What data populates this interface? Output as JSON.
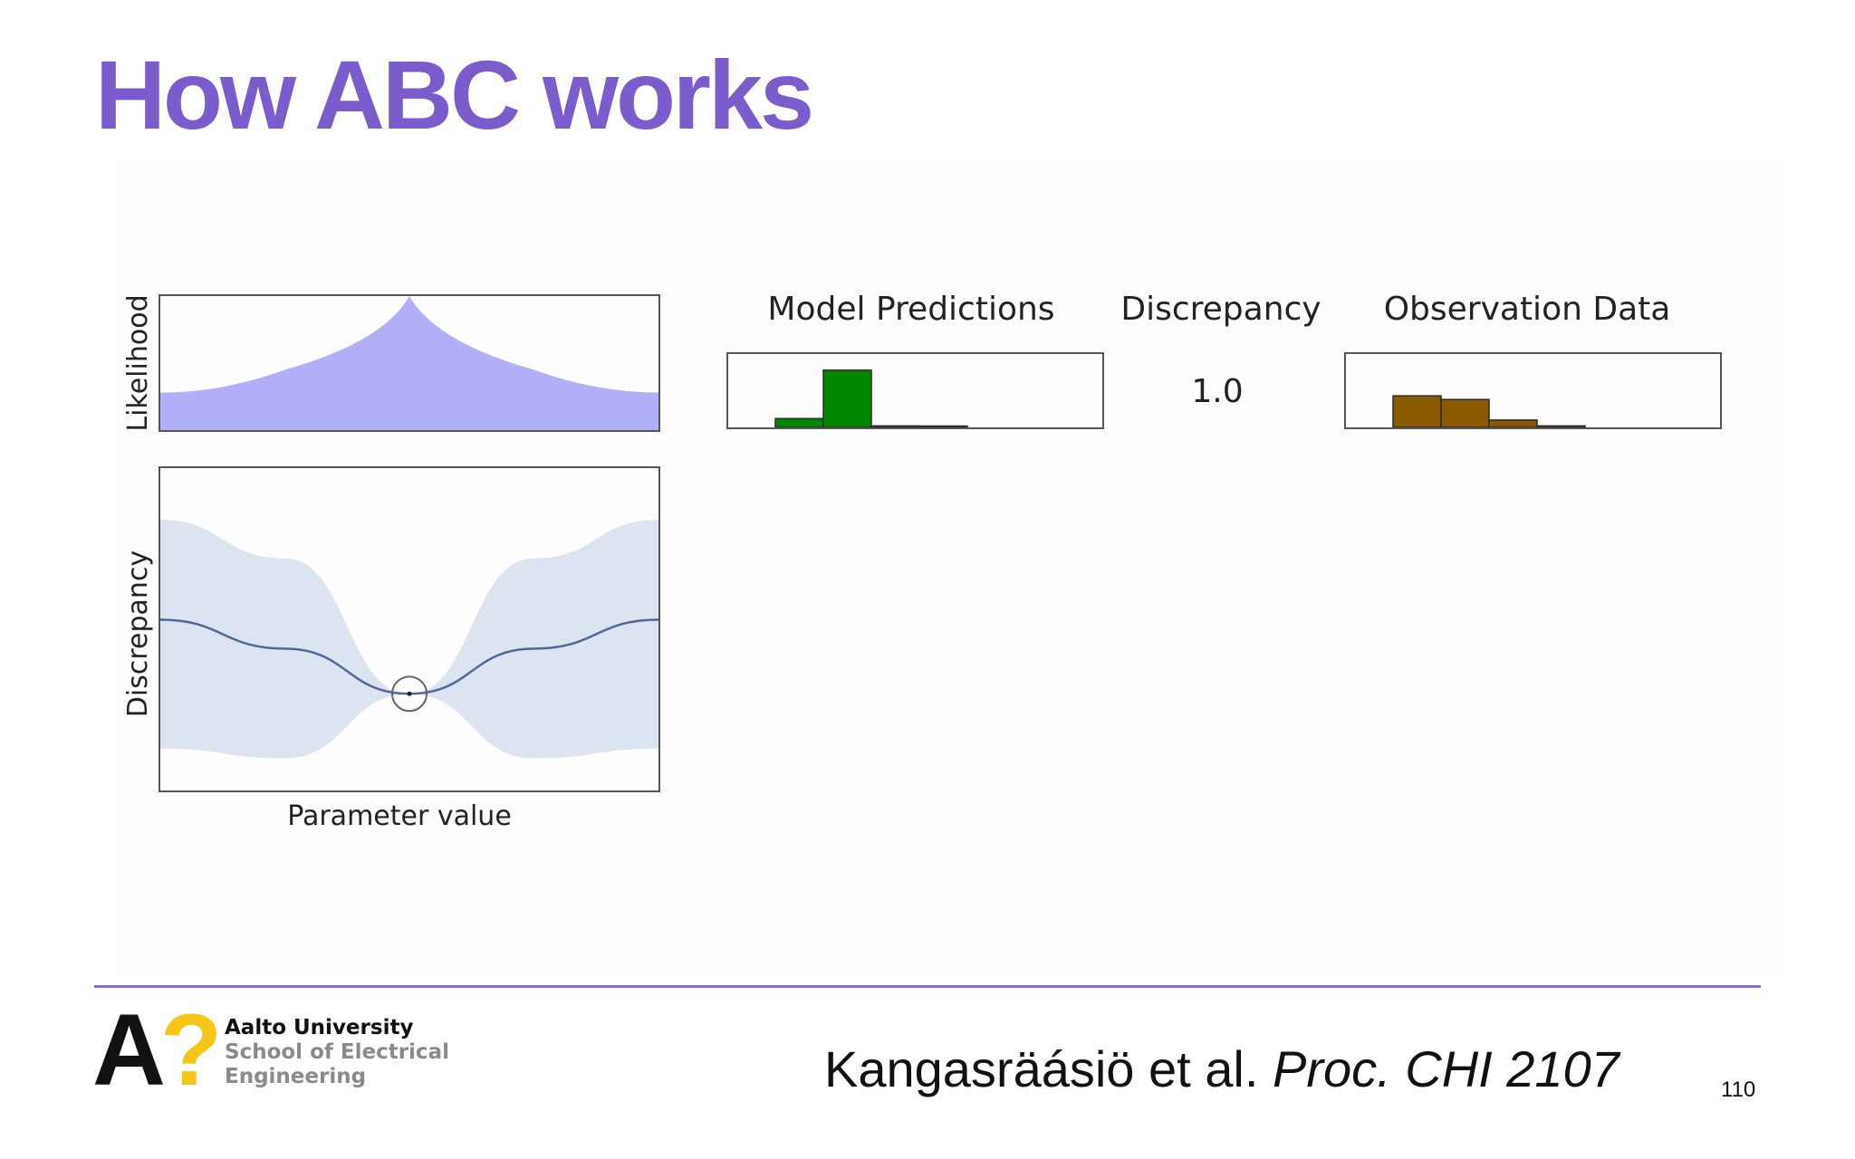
{
  "slide": {
    "title": "How ABC works",
    "citation_authors": "Kangasräásiö et al.",
    "citation_venue": "Proc. CHI 2107",
    "page_number": "110"
  },
  "figure": {
    "likelihood_ylabel": "Likelihood",
    "discrepancy_ylabel": "Discrepancy",
    "parameter_xlabel": "Parameter value",
    "model_predictions_label": "Model Predictions",
    "discrepancy_label": "Discrepancy",
    "discrepancy_value": "1.0",
    "observation_data_label": "Observation Data",
    "colors": {
      "likelihood_fill": "#b0aff7",
      "band_fill": "#dde4f1",
      "mean_line": "#4e6796",
      "prediction_bars": "#008800",
      "observation_bars": "#8a5a00"
    }
  },
  "chart_data": [
    {
      "type": "area",
      "ylabel": "Likelihood",
      "xlabel": "",
      "x": [
        0,
        0.25,
        0.5,
        0.75,
        1
      ],
      "values": [
        0.28,
        0.45,
        1.0,
        0.45,
        0.28
      ]
    },
    {
      "type": "line",
      "ylabel": "Discrepancy",
      "xlabel": "Parameter value",
      "series": [
        {
          "values": [
            0.53,
            0.44,
            0.3,
            0.44,
            0.53
          ]
        }
      ],
      "band_upper": [
        0.84,
        0.72,
        0.3,
        0.72,
        0.84
      ],
      "band_lower": [
        0.13,
        0.1,
        0.3,
        0.1,
        0.13
      ],
      "x": [
        0,
        0.25,
        0.5,
        0.75,
        1
      ],
      "evaluated_point": {
        "x": 0.5,
        "y": 0.3
      }
    },
    {
      "type": "bar",
      "title": "Model Predictions",
      "values": [
        0.12,
        0.78,
        0.02,
        0.01
      ]
    },
    {
      "type": "bar",
      "title": "Observation Data",
      "values": [
        0.43,
        0.38,
        0.1,
        0.02
      ]
    }
  ],
  "logo": {
    "mark_a": "A",
    "mark_q": "?",
    "university": "Aalto University",
    "school_line1": "School of Electrical",
    "school_line2": "Engineering"
  }
}
